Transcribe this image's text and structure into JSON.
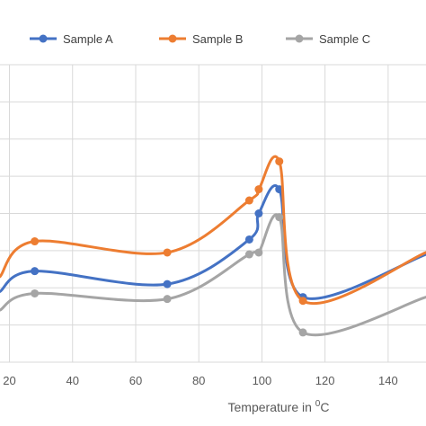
{
  "chart_data": {
    "type": "line",
    "title": "",
    "xlabel": "Temperature in",
    "xlabel_superscript": "0",
    "xlabel_unit": "C",
    "ylabel": "",
    "xlim": [
      17,
      152
    ],
    "ylim": [
      0,
      8
    ],
    "x_ticks": [
      20,
      40,
      60,
      80,
      100,
      120,
      140
    ],
    "x_tick_labels": [
      "20",
      "40",
      "60",
      "80",
      "100",
      "120",
      "140"
    ],
    "y_gridlines": [
      1,
      2,
      3,
      4,
      5,
      6,
      7
    ],
    "grid": "vertical-and-horizontal",
    "legend_position": "top",
    "smooth": true,
    "series": [
      {
        "name": "Sample A",
        "color": "#4472C4",
        "points": [
          [
            17,
            1.9
          ],
          [
            28,
            2.45
          ],
          [
            70,
            2.1
          ],
          [
            96,
            3.3
          ],
          [
            99,
            4.0
          ],
          [
            105.5,
            4.65
          ],
          [
            113,
            1.75
          ],
          [
            152,
            2.9
          ]
        ],
        "markers": [
          [
            28,
            2.45
          ],
          [
            70,
            2.1
          ],
          [
            96,
            3.3
          ],
          [
            99,
            4.0
          ],
          [
            105.5,
            4.65
          ],
          [
            113,
            1.75
          ]
        ]
      },
      {
        "name": "Sample B",
        "color": "#ED7D31",
        "points": [
          [
            17,
            2.3
          ],
          [
            28,
            3.25
          ],
          [
            70,
            2.95
          ],
          [
            96,
            4.35
          ],
          [
            99,
            4.65
          ],
          [
            105.5,
            5.4
          ],
          [
            113,
            1.65
          ],
          [
            152,
            2.95
          ]
        ],
        "markers": [
          [
            28,
            3.25
          ],
          [
            70,
            2.95
          ],
          [
            96,
            4.35
          ],
          [
            99,
            4.65
          ],
          [
            105.5,
            5.4
          ],
          [
            113,
            1.65
          ]
        ]
      },
      {
        "name": "Sample C",
        "color": "#A5A5A5",
        "points": [
          [
            17,
            1.4
          ],
          [
            28,
            1.85
          ],
          [
            70,
            1.7
          ],
          [
            96,
            2.9
          ],
          [
            99,
            2.95
          ],
          [
            105.5,
            3.9
          ],
          [
            113,
            0.8
          ],
          [
            152,
            1.75
          ]
        ],
        "markers": [
          [
            28,
            1.85
          ],
          [
            70,
            1.7
          ],
          [
            96,
            2.9
          ],
          [
            99,
            2.95
          ],
          [
            105.5,
            3.9
          ],
          [
            113,
            0.8
          ]
        ]
      }
    ]
  }
}
